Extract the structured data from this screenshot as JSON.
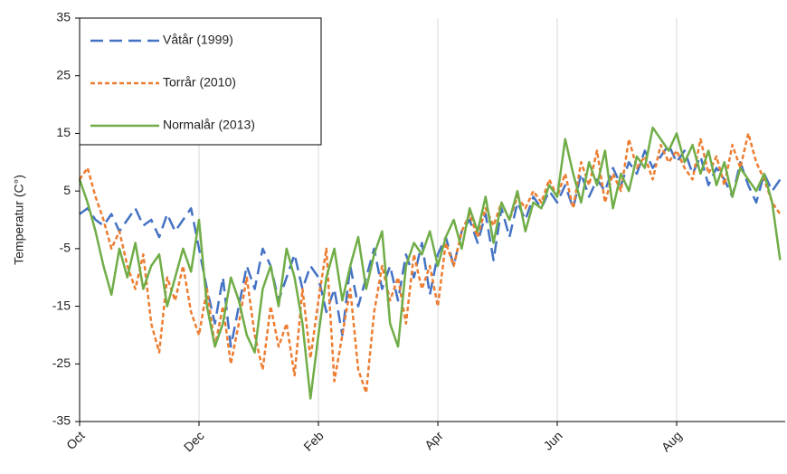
{
  "chart_data": {
    "type": "line",
    "y_label": "Temperatur  (C°)",
    "categories": [
      "Oct",
      null,
      null,
      null,
      null,
      null,
      null,
      null,
      null,
      null,
      null,
      null,
      null,
      null,
      null,
      "Dec",
      null,
      null,
      null,
      null,
      null,
      null,
      null,
      null,
      null,
      null,
      null,
      null,
      null,
      null,
      "Feb",
      null,
      null,
      null,
      null,
      null,
      null,
      null,
      null,
      null,
      null,
      null,
      null,
      null,
      null,
      "Apr",
      null,
      null,
      null,
      null,
      null,
      null,
      null,
      null,
      null,
      null,
      null,
      null,
      null,
      null,
      "Jun",
      null,
      null,
      null,
      null,
      null,
      null,
      null,
      null,
      null,
      null,
      null,
      null,
      null,
      null,
      "Aug",
      null,
      null,
      null,
      null,
      null,
      null,
      null,
      null,
      null,
      null,
      null,
      null,
      null
    ],
    "series": [
      {
        "name": "Våtår (1999)",
        "color": "#4472c4",
        "dash": "long-dash",
        "values": [
          1,
          2,
          0,
          -1,
          1,
          -2,
          0,
          2,
          -1,
          0,
          -3,
          1,
          -2,
          0,
          2,
          -5,
          -12,
          -18,
          -10,
          -22,
          -15,
          -8,
          -12,
          -5,
          -8,
          -14,
          -10,
          -6,
          -12,
          -8,
          -10,
          -16,
          -12,
          -20,
          -8,
          -15,
          -10,
          -5,
          -12,
          -8,
          -14,
          -6,
          -10,
          -4,
          -13,
          -6,
          -3,
          -8,
          -2,
          0,
          -4,
          1,
          -7,
          2,
          -3,
          3,
          0,
          4,
          2,
          5,
          3,
          6,
          2,
          8,
          4,
          7,
          5,
          9,
          6,
          10,
          8,
          12,
          9,
          11,
          13,
          10,
          12,
          8,
          11,
          6,
          9,
          7,
          4,
          10,
          6,
          3,
          8,
          5,
          7
        ]
      },
      {
        "name": "Torrår (2010)",
        "color": "#ed7d31",
        "dash": "short-dash",
        "values": [
          7,
          9,
          4,
          0,
          -5,
          -2,
          -8,
          -12,
          -6,
          -18,
          -23,
          -10,
          -14,
          -8,
          -16,
          -20,
          -12,
          -22,
          -15,
          -25,
          -18,
          -10,
          -20,
          -26,
          -15,
          -22,
          -18,
          -27,
          -12,
          -24,
          -14,
          -5,
          -28,
          -20,
          -12,
          -26,
          -30,
          -16,
          -8,
          -14,
          -10,
          -18,
          -6,
          -12,
          -8,
          -15,
          -4,
          -8,
          -2,
          1,
          -3,
          2,
          -1,
          3,
          0,
          4,
          2,
          5,
          3,
          7,
          4,
          8,
          2,
          10,
          6,
          12,
          3,
          8,
          5,
          14,
          9,
          11,
          7,
          13,
          10,
          12,
          9,
          7,
          14,
          8,
          11,
          6,
          13,
          9,
          15,
          10,
          7,
          3,
          1
        ]
      },
      {
        "name": "Normalår (2013)",
        "color": "#70ad47",
        "dash": "solid",
        "values": [
          7,
          3,
          -2,
          -8,
          -13,
          -5,
          -10,
          -4,
          -12,
          -8,
          -6,
          -15,
          -10,
          -5,
          -9,
          0,
          -15,
          -22,
          -18,
          -10,
          -14,
          -20,
          -23,
          -12,
          -8,
          -15,
          -5,
          -10,
          -18,
          -31,
          -20,
          -10,
          -5,
          -14,
          -8,
          -3,
          -12,
          -6,
          -2,
          -18,
          -22,
          -8,
          -4,
          -6,
          -2,
          -8,
          -3,
          0,
          -5,
          2,
          -2,
          4,
          -4,
          3,
          0,
          5,
          -2,
          3,
          2,
          6,
          4,
          14,
          8,
          3,
          10,
          6,
          12,
          2,
          8,
          5,
          11,
          9,
          16,
          14,
          12,
          15,
          10,
          13,
          8,
          12,
          6,
          10,
          4,
          9,
          7,
          5,
          8,
          3,
          -7
        ]
      }
    ],
    "ylim": [
      -35,
      35
    ],
    "yticks": [
      -35,
      -25,
      -15,
      -5,
      5,
      15,
      25,
      35
    ],
    "grid": "x",
    "legend": "top-left"
  }
}
